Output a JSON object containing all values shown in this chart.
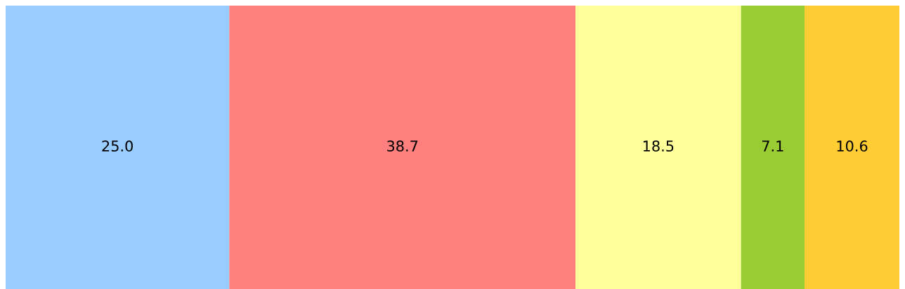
{
  "chart_data": {
    "type": "bar",
    "orientation": "horizontal",
    "stacked": true,
    "categories": [
      null
    ],
    "series": [
      {
        "color": "#99ccff",
        "values": [
          25.0
        ],
        "value_labels": [
          "25.0"
        ]
      },
      {
        "color": "#ff7f7f",
        "values": [
          38.7
        ],
        "value_labels": [
          "38.7"
        ]
      },
      {
        "color": "#ffff99",
        "values": [
          18.5
        ],
        "value_labels": [
          "18.5"
        ]
      },
      {
        "color": "#99cc33",
        "values": [
          7.1
        ],
        "value_labels": [
          "7.1"
        ]
      },
      {
        "color": "#ffcc33",
        "values": [
          10.6
        ],
        "value_labels": [
          "10.6"
        ]
      }
    ]
  }
}
